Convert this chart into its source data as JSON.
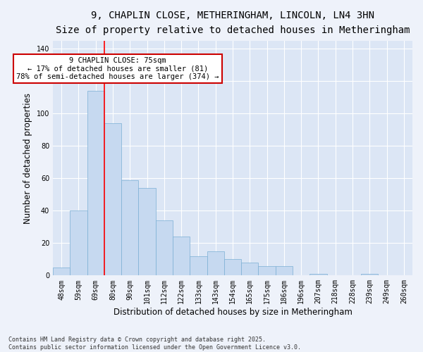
{
  "title_line1": "9, CHAPLIN CLOSE, METHERINGHAM, LINCOLN, LN4 3HN",
  "title_line2": "Size of property relative to detached houses in Metheringham",
  "xlabel": "Distribution of detached houses by size in Metheringham",
  "ylabel": "Number of detached properties",
  "categories": [
    "48sqm",
    "59sqm",
    "69sqm",
    "80sqm",
    "90sqm",
    "101sqm",
    "112sqm",
    "122sqm",
    "133sqm",
    "143sqm",
    "154sqm",
    "165sqm",
    "175sqm",
    "186sqm",
    "196sqm",
    "207sqm",
    "218sqm",
    "228sqm",
    "239sqm",
    "249sqm",
    "260sqm"
  ],
  "values": [
    5,
    40,
    114,
    94,
    59,
    54,
    34,
    24,
    12,
    15,
    10,
    8,
    6,
    6,
    0,
    1,
    0,
    0,
    1,
    0,
    0
  ],
  "bar_color": "#c6d9f0",
  "bar_edge_color": "#7bafd4",
  "red_line_index": 2,
  "annotation_text": "9 CHAPLIN CLOSE: 75sqm\n← 17% of detached houses are smaller (81)\n78% of semi-detached houses are larger (374) →",
  "annotation_box_color": "#ffffff",
  "annotation_box_edge": "#cc0000",
  "ylim_max": 145,
  "yticks": [
    0,
    20,
    40,
    60,
    80,
    100,
    120,
    140
  ],
  "fig_bg": "#eef2fa",
  "ax_bg": "#dce6f5",
  "grid_color": "#ffffff",
  "footer": "Contains HM Land Registry data © Crown copyright and database right 2025.\nContains public sector information licensed under the Open Government Licence v3.0.",
  "title_fontsize": 10,
  "subtitle_fontsize": 9,
  "axis_label_fontsize": 8.5,
  "tick_fontsize": 7,
  "annotation_fontsize": 7.5,
  "footer_fontsize": 6
}
